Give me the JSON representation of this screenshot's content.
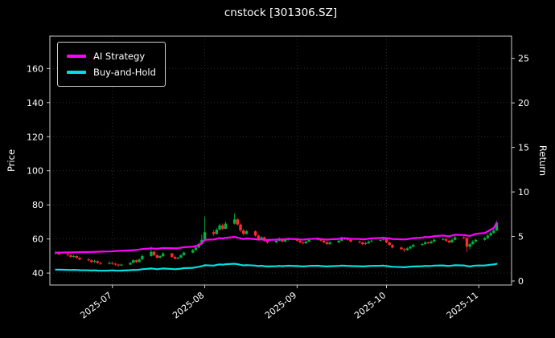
{
  "title": "cnstock [301306.SZ]",
  "axes": {
    "left_label": "Price",
    "right_label": "Return",
    "price_axis": {
      "min": 33,
      "max": 179,
      "ticks": [
        40,
        60,
        80,
        100,
        120,
        140,
        160
      ]
    },
    "return_axis": {
      "min": -0.45,
      "max": 27.5,
      "ticks": [
        0,
        5,
        10,
        15,
        20,
        25
      ]
    },
    "x_axis": {
      "min_date": "2025-06-10",
      "max_date": "2025-11-12",
      "ticks": [
        {
          "date": "2025-07-01",
          "label": "2025-07"
        },
        {
          "date": "2025-08-01",
          "label": "2025-08"
        },
        {
          "date": "2025-09-01",
          "label": "2025-09"
        },
        {
          "date": "2025-10-01",
          "label": "2025-10"
        },
        {
          "date": "2025-11-01",
          "label": "2025-11"
        }
      ]
    }
  },
  "legend": {
    "items": [
      {
        "label": "AI Strategy",
        "color": "#ff00ff"
      },
      {
        "label": "Buy-and-Hold",
        "color": "#00e0e0"
      }
    ]
  },
  "colors": {
    "background": "#000000",
    "text": "#ffffff",
    "grid": "#2b2b2b",
    "spine": "#cccccc",
    "candle_up": "#00b140",
    "candle_down": "#ff2a2a",
    "ai_line": "#ff00ff",
    "bh_line": "#00e0e0"
  },
  "chart_data": {
    "type": "candlestick",
    "title": "cnstock [301306.SZ]",
    "ylabel_left": "Price",
    "ylabel_right": "Return",
    "legend_position": "upper-left",
    "grid": true,
    "dates": [
      "2025-06-12",
      "2025-06-13",
      "2025-06-16",
      "2025-06-17",
      "2025-06-18",
      "2025-06-19",
      "2025-06-20",
      "2025-06-23",
      "2025-06-24",
      "2025-06-25",
      "2025-06-26",
      "2025-06-27",
      "2025-06-30",
      "2025-07-01",
      "2025-07-02",
      "2025-07-03",
      "2025-07-04",
      "2025-07-07",
      "2025-07-08",
      "2025-07-09",
      "2025-07-10",
      "2025-07-11",
      "2025-07-14",
      "2025-07-15",
      "2025-07-16",
      "2025-07-17",
      "2025-07-18",
      "2025-07-21",
      "2025-07-22",
      "2025-07-23",
      "2025-07-24",
      "2025-07-25",
      "2025-07-28",
      "2025-07-29",
      "2025-07-30",
      "2025-07-31",
      "2025-08-01",
      "2025-08-04",
      "2025-08-05",
      "2025-08-06",
      "2025-08-07",
      "2025-08-08",
      "2025-08-11",
      "2025-08-12",
      "2025-08-13",
      "2025-08-14",
      "2025-08-15",
      "2025-08-18",
      "2025-08-19",
      "2025-08-20",
      "2025-08-21",
      "2025-08-22",
      "2025-08-25",
      "2025-08-26",
      "2025-08-27",
      "2025-08-28",
      "2025-08-29",
      "2025-09-01",
      "2025-09-02",
      "2025-09-03",
      "2025-09-04",
      "2025-09-05",
      "2025-09-08",
      "2025-09-09",
      "2025-09-10",
      "2025-09-11",
      "2025-09-12",
      "2025-09-15",
      "2025-09-16",
      "2025-09-17",
      "2025-09-18",
      "2025-09-19",
      "2025-09-22",
      "2025-09-23",
      "2025-09-24",
      "2025-09-25",
      "2025-09-26",
      "2025-09-29",
      "2025-09-30",
      "2025-10-01",
      "2025-10-02",
      "2025-10-03",
      "2025-10-06",
      "2025-10-07",
      "2025-10-08",
      "2025-10-09",
      "2025-10-10",
      "2025-10-13",
      "2025-10-14",
      "2025-10-15",
      "2025-10-16",
      "2025-10-17",
      "2025-10-20",
      "2025-10-21",
      "2025-10-22",
      "2025-10-23",
      "2025-10-24",
      "2025-10-27",
      "2025-10-28",
      "2025-10-29",
      "2025-10-30",
      "2025-10-31",
      "2025-11-03",
      "2025-11-04",
      "2025-11-05",
      "2025-11-06",
      "2025-11-07"
    ],
    "ohlc": [
      [
        51.5,
        53.0,
        50.8,
        52.0
      ],
      [
        52.0,
        52.8,
        50.5,
        51.0
      ],
      [
        51.0,
        51.8,
        49.8,
        50.5
      ],
      [
        50.5,
        51.0,
        48.9,
        49.5
      ],
      [
        49.5,
        50.8,
        49.0,
        50.0
      ],
      [
        50.0,
        50.5,
        48.4,
        49.0
      ],
      [
        49.0,
        49.6,
        47.5,
        48.0
      ],
      [
        48.0,
        48.8,
        46.9,
        47.5
      ],
      [
        47.5,
        48.0,
        45.9,
        46.5
      ],
      [
        46.5,
        47.8,
        46.0,
        47.0
      ],
      [
        47.0,
        47.4,
        45.4,
        46.0
      ],
      [
        46.0,
        46.6,
        44.8,
        45.5
      ],
      [
        45.5,
        46.8,
        45.0,
        46.0
      ],
      [
        46.0,
        46.5,
        44.9,
        45.5
      ],
      [
        45.5,
        46.0,
        44.3,
        45.0
      ],
      [
        45.0,
        45.6,
        43.8,
        44.5
      ],
      [
        44.5,
        45.5,
        44.0,
        45.0
      ],
      [
        45.0,
        46.5,
        44.6,
        46.0
      ],
      [
        46.0,
        48.2,
        45.7,
        47.5
      ],
      [
        47.5,
        48.0,
        45.9,
        46.5
      ],
      [
        46.5,
        48.6,
        46.2,
        48.0
      ],
      [
        48.0,
        50.8,
        47.7,
        50.0
      ],
      [
        50.0,
        55.5,
        49.6,
        52.5
      ],
      [
        52.5,
        53.2,
        50.0,
        50.5
      ],
      [
        50.5,
        51.2,
        48.5,
        49.0
      ],
      [
        49.0,
        50.6,
        48.6,
        50.0
      ],
      [
        50.0,
        52.3,
        49.5,
        51.5
      ],
      [
        51.5,
        52.0,
        49.0,
        49.5
      ],
      [
        49.5,
        50.2,
        48.0,
        48.5
      ],
      [
        48.5,
        49.6,
        48.0,
        49.0
      ],
      [
        49.0,
        51.2,
        48.7,
        50.5
      ],
      [
        50.5,
        52.6,
        50.1,
        52.0
      ],
      [
        52.0,
        54.2,
        51.6,
        53.5
      ],
      [
        53.5,
        55.8,
        53.1,
        55.0
      ],
      [
        55.0,
        57.9,
        54.6,
        57.0
      ],
      [
        57.0,
        62.5,
        56.6,
        59.5
      ],
      [
        59.5,
        73.0,
        58.9,
        64.0
      ],
      [
        64.0,
        65.2,
        61.8,
        63.0
      ],
      [
        63.0,
        66.4,
        62.5,
        65.5
      ],
      [
        65.5,
        69.0,
        65.0,
        68.0
      ],
      [
        68.0,
        69.0,
        65.2,
        66.0
      ],
      [
        66.0,
        70.2,
        65.6,
        69.0
      ],
      [
        69.0,
        75.0,
        68.5,
        71.5
      ],
      [
        71.5,
        72.3,
        67.8,
        68.5
      ],
      [
        68.5,
        69.2,
        64.2,
        65.0
      ],
      [
        65.0,
        65.8,
        62.2,
        63.0
      ],
      [
        63.0,
        65.3,
        62.6,
        64.5
      ],
      [
        64.5,
        65.0,
        61.4,
        62.0
      ],
      [
        62.0,
        62.6,
        59.3,
        60.0
      ],
      [
        60.0,
        61.8,
        59.5,
        61.0
      ],
      [
        61.0,
        61.5,
        58.3,
        59.0
      ],
      [
        59.0,
        59.6,
        57.2,
        58.0
      ],
      [
        58.0,
        59.8,
        57.6,
        59.0
      ],
      [
        59.0,
        60.9,
        58.6,
        60.0
      ],
      [
        60.0,
        60.5,
        57.9,
        58.5
      ],
      [
        58.5,
        60.3,
        58.1,
        59.5
      ],
      [
        59.5,
        60.8,
        59.0,
        60.0
      ],
      [
        60.0,
        60.6,
        58.4,
        59.0
      ],
      [
        59.0,
        59.5,
        57.4,
        58.0
      ],
      [
        58.0,
        58.6,
        56.9,
        57.5
      ],
      [
        57.5,
        59.1,
        57.1,
        58.5
      ],
      [
        58.5,
        60.2,
        58.1,
        59.5
      ],
      [
        59.5,
        60.9,
        59.1,
        60.0
      ],
      [
        60.0,
        60.5,
        58.4,
        59.0
      ],
      [
        59.0,
        59.6,
        57.5,
        58.0
      ],
      [
        58.0,
        58.5,
        56.4,
        57.0
      ],
      [
        57.0,
        58.7,
        56.6,
        58.0
      ],
      [
        58.0,
        59.8,
        57.6,
        59.0
      ],
      [
        59.0,
        61.3,
        58.7,
        60.5
      ],
      [
        60.5,
        61.2,
        59.4,
        60.0
      ],
      [
        60.0,
        60.6,
        58.9,
        59.5
      ],
      [
        59.5,
        60.0,
        57.9,
        58.5
      ],
      [
        58.5,
        59.2,
        57.4,
        58.0
      ],
      [
        58.0,
        58.4,
        56.4,
        57.0
      ],
      [
        57.0,
        58.3,
        56.6,
        57.5
      ],
      [
        57.5,
        59.2,
        57.1,
        58.5
      ],
      [
        58.5,
        59.8,
        58.1,
        59.0
      ],
      [
        59.0,
        60.2,
        58.6,
        59.5
      ],
      [
        59.5,
        60.9,
        59.1,
        60.0
      ],
      [
        60.0,
        60.4,
        57.5,
        58.0
      ],
      [
        58.0,
        58.5,
        55.9,
        56.5
      ],
      [
        56.5,
        57.0,
        54.4,
        55.0
      ],
      [
        55.0,
        55.6,
        53.4,
        54.0
      ],
      [
        54.0,
        54.8,
        52.3,
        53.5
      ],
      [
        53.5,
        55.1,
        53.1,
        54.5
      ],
      [
        54.5,
        56.2,
        54.1,
        55.5
      ],
      [
        55.5,
        57.3,
        55.1,
        56.5
      ],
      [
        56.5,
        57.6,
        55.9,
        57.0
      ],
      [
        57.0,
        58.9,
        56.6,
        58.0
      ],
      [
        58.0,
        58.6,
        56.9,
        57.5
      ],
      [
        57.5,
        59.2,
        57.1,
        58.5
      ],
      [
        58.5,
        60.4,
        58.1,
        59.5
      ],
      [
        59.5,
        60.9,
        59.1,
        60.0
      ],
      [
        60.0,
        60.5,
        58.4,
        59.0
      ],
      [
        59.0,
        59.5,
        57.4,
        58.0
      ],
      [
        58.0,
        60.2,
        57.6,
        59.5
      ],
      [
        59.5,
        61.9,
        59.1,
        61.0
      ],
      [
        61.0,
        61.6,
        59.9,
        60.5
      ],
      [
        60.5,
        61.0,
        52.5,
        55.5
      ],
      [
        55.5,
        57.8,
        54.0,
        57.0
      ],
      [
        57.0,
        59.3,
        56.6,
        58.5
      ],
      [
        58.5,
        60.0,
        58.0,
        59.5
      ],
      [
        59.5,
        61.2,
        59.0,
        60.5
      ],
      [
        60.5,
        62.9,
        60.1,
        62.0
      ],
      [
        62.0,
        64.3,
        61.6,
        63.5
      ],
      [
        63.5,
        66.0,
        63.1,
        65.0
      ],
      [
        65.0,
        70.5,
        64.6,
        69.5
      ]
    ],
    "series": [
      {
        "name": "AI Strategy",
        "color": "#ff00ff",
        "axis": "price",
        "values": [
          52.0,
          52.0,
          52.1,
          52.1,
          52.2,
          52.2,
          52.3,
          52.3,
          52.4,
          52.5,
          52.5,
          52.6,
          52.7,
          52.8,
          52.9,
          53.0,
          53.1,
          53.3,
          53.5,
          53.6,
          53.8,
          54.1,
          54.5,
          54.4,
          54.3,
          54.5,
          54.7,
          54.6,
          54.5,
          54.6,
          54.9,
          55.2,
          55.5,
          55.9,
          56.5,
          57.5,
          59.5,
          59.7,
          60.1,
          60.6,
          60.3,
          60.7,
          61.2,
          60.8,
          60.3,
          60.0,
          60.3,
          59.9,
          59.6,
          59.8,
          59.5,
          59.4,
          59.6,
          59.9,
          59.7,
          59.9,
          60.1,
          59.9,
          59.7,
          59.6,
          59.8,
          60.0,
          60.2,
          60.0,
          59.8,
          59.6,
          59.8,
          60.1,
          60.5,
          60.4,
          60.3,
          60.1,
          60.0,
          59.8,
          59.9,
          60.2,
          60.4,
          60.6,
          60.8,
          60.5,
          60.3,
          60.0,
          59.8,
          59.7,
          59.9,
          60.2,
          60.5,
          60.8,
          61.2,
          61.0,
          61.3,
          61.7,
          62.0,
          61.8,
          61.6,
          62.0,
          62.5,
          62.3,
          62.0,
          61.8,
          62.4,
          63.0,
          63.5,
          64.5,
          65.5,
          66.5,
          69.5
        ]
      },
      {
        "name": "Buy-and-Hold",
        "color": "#00e0e0",
        "axis": "price",
        "values": [
          42.0,
          42.0,
          41.9,
          41.8,
          41.9,
          41.8,
          41.7,
          41.6,
          41.5,
          41.6,
          41.5,
          41.4,
          41.5,
          41.6,
          41.5,
          41.4,
          41.5,
          41.7,
          41.9,
          41.8,
          42.0,
          42.3,
          42.7,
          42.5,
          42.3,
          42.5,
          42.7,
          42.4,
          42.3,
          42.4,
          42.6,
          42.9,
          43.1,
          43.4,
          43.7,
          44.1,
          44.6,
          44.4,
          44.8,
          45.1,
          44.9,
          45.2,
          45.5,
          45.2,
          44.8,
          44.5,
          44.7,
          44.4,
          44.1,
          44.3,
          44.0,
          43.9,
          44.0,
          44.2,
          44.0,
          44.2,
          44.3,
          44.1,
          44.0,
          43.9,
          44.0,
          44.2,
          44.3,
          44.1,
          44.0,
          43.9,
          44.0,
          44.2,
          44.4,
          44.3,
          44.2,
          44.1,
          44.0,
          43.9,
          44.0,
          44.1,
          44.2,
          44.3,
          44.4,
          44.1,
          43.9,
          43.7,
          43.5,
          43.4,
          43.6,
          43.8,
          43.9,
          44.0,
          44.2,
          44.1,
          44.2,
          44.4,
          44.5,
          44.3,
          44.2,
          44.4,
          44.6,
          44.5,
          44.1,
          43.9,
          44.2,
          44.4,
          44.5,
          44.7,
          44.9,
          45.1,
          45.4
        ]
      }
    ]
  }
}
